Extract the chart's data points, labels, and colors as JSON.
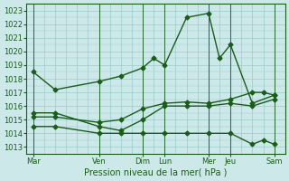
{
  "title": "Pression niveau de la mer( hPa )",
  "bg_color": "#cce8e8",
  "grid_color": "#99cccc",
  "line_color": "#1a5c1a",
  "ylim_min": 1012.5,
  "ylim_max": 1023.5,
  "yticks": [
    1013,
    1014,
    1015,
    1016,
    1017,
    1018,
    1019,
    1020,
    1021,
    1022,
    1023
  ],
  "day_labels": [
    "Mar",
    "Ven",
    "Dim",
    "Lun",
    "Mer",
    "Jeu",
    "Sam"
  ],
  "day_positions": [
    0,
    3,
    5,
    6,
    8,
    9,
    11
  ],
  "xlim_min": -0.3,
  "xlim_max": 11.5,
  "series1_x": [
    0,
    1,
    3,
    4,
    5,
    5.5,
    6,
    7,
    8,
    8.5,
    9,
    10,
    11
  ],
  "series1_y": [
    1018.5,
    1017.2,
    1017.8,
    1018.2,
    1018.8,
    1019.5,
    1019.0,
    1022.5,
    1022.8,
    1019.5,
    1020.5,
    1016.2,
    1016.8
  ],
  "series2_x": [
    0,
    1,
    3,
    4,
    5,
    6,
    7,
    8,
    9,
    10,
    11
  ],
  "series2_y": [
    1015.5,
    1015.5,
    1014.5,
    1014.2,
    1015.0,
    1016.0,
    1016.0,
    1016.0,
    1016.2,
    1016.0,
    1016.5
  ],
  "series3_x": [
    0,
    1,
    3,
    4,
    5,
    6,
    7,
    8,
    9,
    10,
    10.5,
    11
  ],
  "series3_y": [
    1015.2,
    1015.2,
    1014.8,
    1015.0,
    1015.8,
    1016.2,
    1016.3,
    1016.2,
    1016.5,
    1017.0,
    1017.0,
    1016.8
  ],
  "series4_x": [
    0,
    1,
    3,
    4,
    5,
    6,
    7,
    8,
    9,
    10,
    10.5,
    11
  ],
  "series4_y": [
    1014.5,
    1014.5,
    1014.0,
    1014.0,
    1014.0,
    1014.0,
    1014.0,
    1014.0,
    1014.0,
    1013.2,
    1013.5,
    1013.2
  ]
}
